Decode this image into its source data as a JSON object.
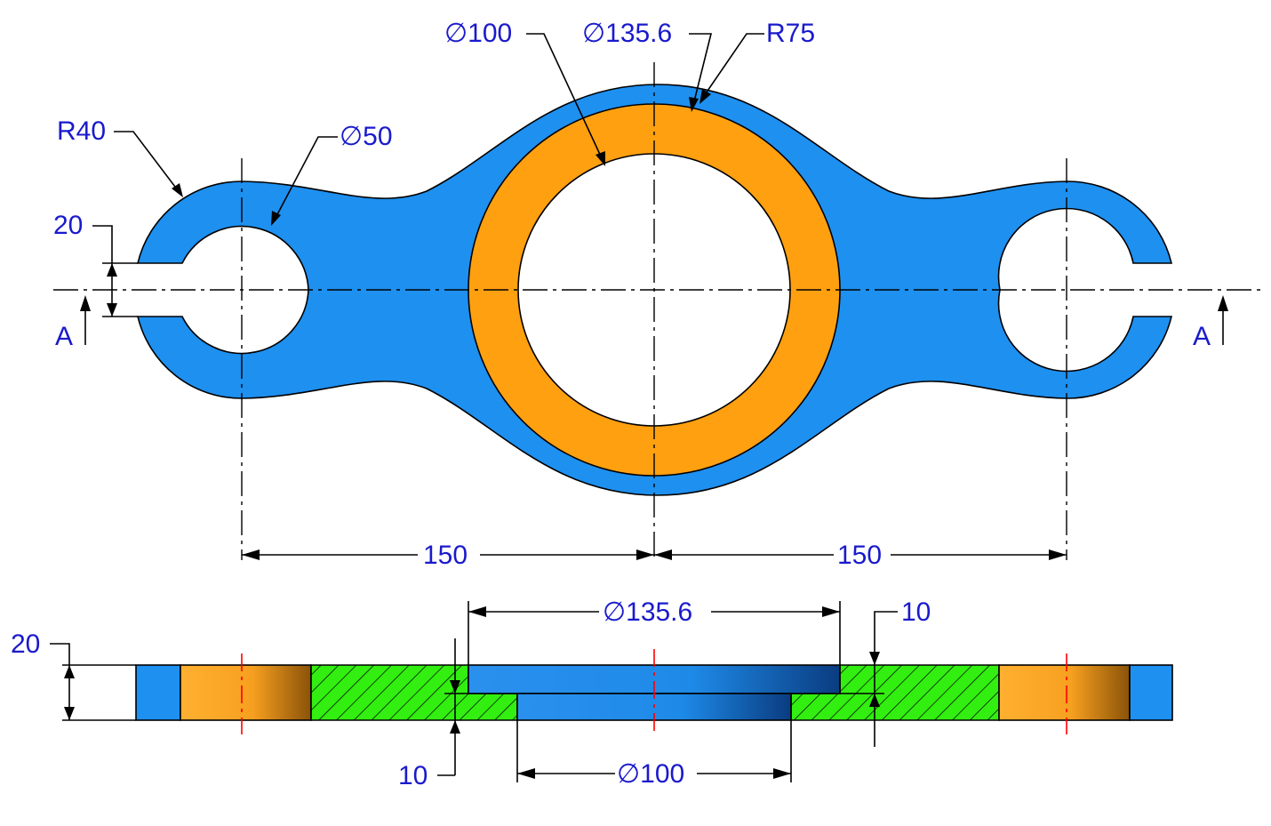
{
  "colors": {
    "body": "#1e90f0",
    "bushing": "#ffa010",
    "hatch_fill": "#33ee11",
    "dimension_text": "#1a1acc",
    "cut_centerline": "#ff0000",
    "outline": "#000000"
  },
  "plan_view": {
    "dims": {
      "hole_bore": "∅100",
      "bushing_outer": "∅135.6",
      "center_radius": "R75",
      "end_radius": "R40",
      "end_hole": "∅50",
      "slot_width": "20",
      "left_spacing": "150",
      "right_spacing": "150"
    },
    "section_labels": {
      "left": "A",
      "right": "A"
    }
  },
  "section_view": {
    "dims": {
      "counterbore_dia": "∅135.6",
      "counterbore_depth": "10",
      "thickness": "20",
      "bottom_step": "10",
      "bore_dia": "∅100"
    }
  }
}
